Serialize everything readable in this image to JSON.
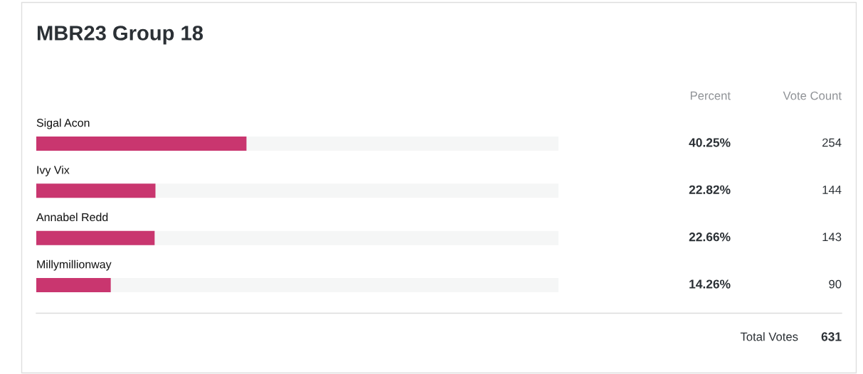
{
  "chart_data": {
    "type": "bar",
    "orientation": "horizontal",
    "title": "MBR23 Group 18",
    "categories": [
      "Sigal Acon",
      "Ivy Vix",
      "Annabel Redd",
      "Millymillionway"
    ],
    "values": [
      40.25,
      22.82,
      22.66,
      14.26
    ],
    "color": "#c9366f",
    "value_labels": [
      "40.25%",
      "22.82%",
      "22.66%",
      "14.26%"
    ],
    "xlim": [
      0,
      100
    ],
    "tick_labels": "y",
    "annotations": [
      "Percent",
      "Vote Count",
      "254",
      "144",
      "143",
      "90",
      "Total Votes",
      "631"
    ]
  }
}
